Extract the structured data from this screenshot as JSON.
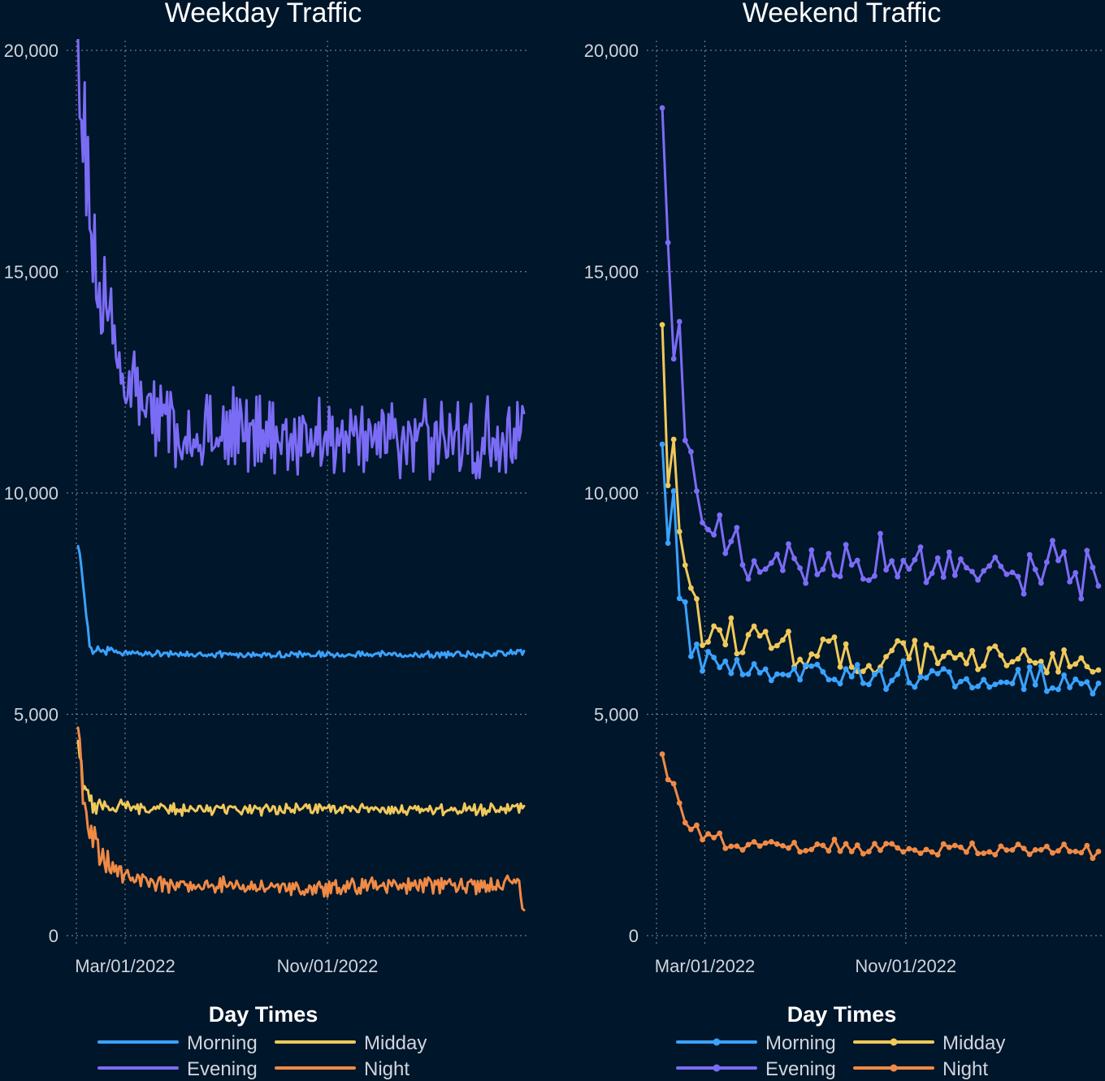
{
  "colors": {
    "background": "#00162a",
    "morning": "#3aa2ff",
    "evening": "#7b6cf6",
    "midday": "#f0c95a",
    "night": "#f08a45",
    "grid": "#8a96a6"
  },
  "chart_data": [
    {
      "type": "line",
      "title": "Weekday Traffic",
      "xlabel": "",
      "ylabel": "",
      "x_range": [
        "2022-01-01",
        "2023-06-30"
      ],
      "x_ticks": [
        "Mar/01/2022",
        "Nov/01/2022"
      ],
      "y_ticks": [
        "0",
        "5,000",
        "10,000",
        "15,000",
        "20,000"
      ],
      "ylim": [
        0,
        20000
      ],
      "grid": true,
      "markers": false,
      "legend": {
        "title": "Day Times",
        "position": "bottom"
      },
      "series": [
        {
          "name": "Morning",
          "color": "#3aa2ff",
          "x": [
            "2022-01-03",
            "2022-01-10",
            "2022-01-17",
            "2022-01-31",
            "2022-03-01",
            "2022-05-01",
            "2022-07-01",
            "2022-09-01",
            "2022-11-01",
            "2023-01-01",
            "2023-03-01",
            "2023-05-01",
            "2023-06-28"
          ],
          "y": [
            8800,
            7900,
            6500,
            6450,
            6400,
            6350,
            6350,
            6350,
            6350,
            6350,
            6350,
            6350,
            6400
          ]
        },
        {
          "name": "Evening",
          "color": "#7b6cf6",
          "x": [
            "2022-01-03",
            "2022-01-10",
            "2022-01-17",
            "2022-01-24",
            "2022-01-31",
            "2022-02-14",
            "2022-03-01",
            "2022-03-15",
            "2022-04-01",
            "2022-05-01",
            "2022-06-01",
            "2022-07-01",
            "2022-08-01",
            "2022-09-01",
            "2022-10-01",
            "2022-11-01",
            "2022-12-01",
            "2023-01-01",
            "2023-02-01",
            "2023-03-01",
            "2023-04-01",
            "2023-05-01",
            "2023-06-01",
            "2023-06-28"
          ],
          "y": [
            20300,
            18200,
            16800,
            15400,
            14200,
            13400,
            12700,
            12300,
            11700,
            11500,
            11400,
            11400,
            11400,
            11350,
            11300,
            11300,
            11300,
            11250,
            11300,
            11300,
            11200,
            11250,
            11300,
            11500
          ]
        },
        {
          "name": "Midday",
          "color": "#f0c95a",
          "x": [
            "2022-01-03",
            "2022-01-10",
            "2022-01-17",
            "2022-01-31",
            "2022-03-01",
            "2022-05-01",
            "2022-07-01",
            "2022-09-01",
            "2022-11-01",
            "2023-01-01",
            "2023-03-01",
            "2023-05-01",
            "2023-06-28"
          ],
          "y": [
            4400,
            3300,
            3000,
            3000,
            2900,
            2850,
            2850,
            2850,
            2850,
            2850,
            2850,
            2850,
            2900
          ]
        },
        {
          "name": "Night",
          "color": "#f08a45",
          "x": [
            "2022-01-03",
            "2022-01-10",
            "2022-01-17",
            "2022-01-24",
            "2022-01-31",
            "2022-02-14",
            "2022-03-01",
            "2022-04-01",
            "2022-05-01",
            "2022-07-01",
            "2022-09-01",
            "2022-11-01",
            "2023-01-01",
            "2023-03-01",
            "2023-05-01",
            "2023-06-21",
            "2023-06-28"
          ],
          "y": [
            4700,
            3000,
            2500,
            2100,
            1800,
            1500,
            1350,
            1200,
            1150,
            1150,
            1100,
            1050,
            1150,
            1150,
            1100,
            1200,
            450
          ]
        }
      ]
    },
    {
      "type": "line",
      "title": "Weekend Traffic",
      "xlabel": "",
      "ylabel": "",
      "x_range": [
        "2022-01-01",
        "2023-06-30"
      ],
      "x_ticks": [
        "Mar/01/2022",
        "Nov/01/2022"
      ],
      "y_ticks": [
        "0",
        "5,000",
        "10,000",
        "15,000",
        "20,000"
      ],
      "ylim": [
        0,
        20000
      ],
      "grid": true,
      "markers": true,
      "legend": {
        "title": "Day Times",
        "position": "bottom"
      },
      "series": [
        {
          "name": "Morning",
          "color": "#3aa2ff",
          "x": [
            "2022-01-08",
            "2022-01-15",
            "2022-01-22",
            "2022-01-29",
            "2022-02-05",
            "2022-02-12",
            "2022-02-19",
            "2022-03-01",
            "2022-04-01",
            "2022-05-01",
            "2022-07-01",
            "2022-09-01",
            "2022-11-01",
            "2023-01-01",
            "2023-03-01",
            "2023-05-01",
            "2023-06-24"
          ],
          "y": [
            11100,
            8800,
            9400,
            7900,
            7200,
            6800,
            6500,
            6300,
            6100,
            6000,
            5950,
            5900,
            5850,
            5800,
            5800,
            5750,
            5700
          ]
        },
        {
          "name": "Evening",
          "color": "#7b6cf6",
          "x": [
            "2022-01-08",
            "2022-01-15",
            "2022-01-22",
            "2022-01-29",
            "2022-02-05",
            "2022-02-12",
            "2022-02-19",
            "2022-02-26",
            "2022-03-15",
            "2022-04-01",
            "2022-05-01",
            "2022-07-01",
            "2022-09-01",
            "2022-11-01",
            "2023-01-01",
            "2023-03-01",
            "2023-05-01",
            "2023-06-24"
          ],
          "y": [
            18700,
            14900,
            12600,
            14500,
            10800,
            10400,
            9600,
            9300,
            9000,
            8800,
            8700,
            8600,
            8500,
            8450,
            8400,
            8350,
            8300,
            7900
          ]
        },
        {
          "name": "Midday",
          "color": "#f0c95a",
          "x": [
            "2022-01-08",
            "2022-01-15",
            "2022-01-22",
            "2022-01-29",
            "2022-02-05",
            "2022-02-12",
            "2022-02-19",
            "2022-03-01",
            "2022-04-01",
            "2022-05-01",
            "2022-07-01",
            "2022-09-01",
            "2022-11-01",
            "2023-01-01",
            "2023-03-01",
            "2023-05-01",
            "2023-06-24"
          ],
          "y": [
            13800,
            10800,
            11500,
            9600,
            8300,
            7800,
            7300,
            7000,
            6800,
            6600,
            6400,
            6300,
            6300,
            6250,
            6250,
            6200,
            6000
          ]
        },
        {
          "name": "Night",
          "color": "#f08a45",
          "x": [
            "2022-01-08",
            "2022-01-15",
            "2022-01-22",
            "2022-01-29",
            "2022-02-05",
            "2022-02-12",
            "2022-02-19",
            "2022-03-01",
            "2022-04-01",
            "2022-05-01",
            "2022-07-01",
            "2022-09-01",
            "2022-11-01",
            "2023-01-01",
            "2023-03-01",
            "2023-05-01",
            "2023-06-24"
          ],
          "y": [
            4100,
            3500,
            3100,
            3200,
            2600,
            2500,
            2300,
            2200,
            2100,
            2050,
            2000,
            2000,
            1950,
            1950,
            1950,
            1900,
            1900
          ]
        }
      ]
    }
  ]
}
